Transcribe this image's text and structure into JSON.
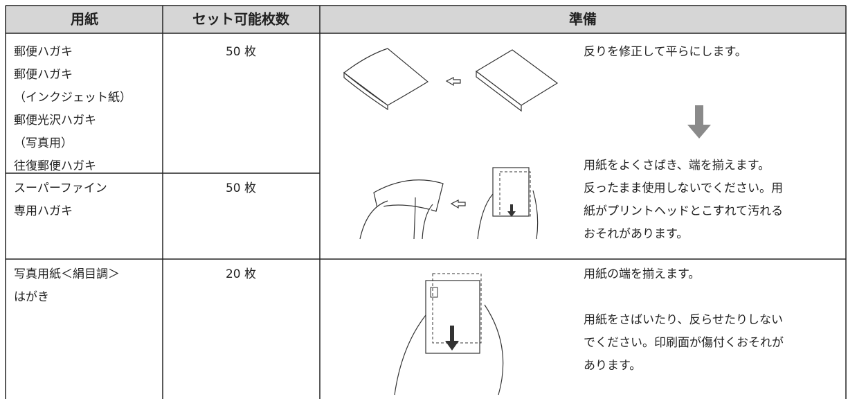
{
  "table": {
    "header": [
      "用紙",
      "セット可能枚数",
      "準備"
    ],
    "rows": [
      {
        "paper": [
          "郵便ハガキ",
          "郵便ハガキ",
          "（インクジェット紙）",
          "郵便光沢ハガキ",
          "（写真用）",
          "往復郵便ハガキ"
        ],
        "count": "50 枚"
      },
      {
        "paper": [
          "スーパーファイン",
          "専用ハガキ"
        ],
        "count": "50 枚"
      },
      {
        "paper": [
          "写真用紙＜絹目調＞",
          "はがき"
        ],
        "count": "20 枚"
      }
    ],
    "prep": [
      [
        "反りを修正して平らにします。"
      ],
      [
        "用紙をよくさばき、端を揃えます。",
        "反ったまま使用しないでください。用",
        "紙がプリントヘッドとこすれて汚れる",
        "おそれがあります。"
      ],
      [
        "用紙の端を揃えます。"
      ],
      [
        "用紙をさばいたり、反らせたりしない",
        "でください。印刷面が傷付くおそれが",
        "あります。"
      ]
    ]
  }
}
